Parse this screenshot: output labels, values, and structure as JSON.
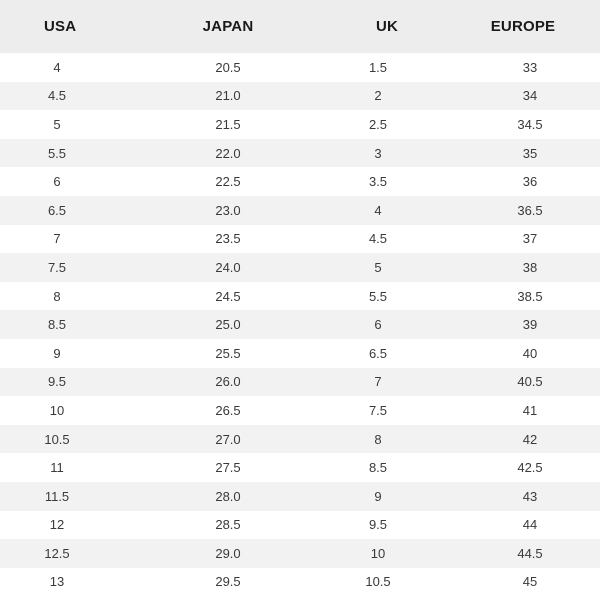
{
  "table": {
    "headers": [
      "USA",
      "JAPAN",
      "UK",
      "EUROPE"
    ],
    "rows": [
      [
        "4",
        "20.5",
        "1.5",
        "33"
      ],
      [
        "4.5",
        "21.0",
        "2",
        "34"
      ],
      [
        "5",
        "21.5",
        "2.5",
        "34.5"
      ],
      [
        "5.5",
        "22.0",
        "3",
        "35"
      ],
      [
        "6",
        "22.5",
        "3.5",
        "36"
      ],
      [
        "6.5",
        "23.0",
        "4",
        "36.5"
      ],
      [
        "7",
        "23.5",
        "4.5",
        "37"
      ],
      [
        "7.5",
        "24.0",
        "5",
        "38"
      ],
      [
        "8",
        "24.5",
        "5.5",
        "38.5"
      ],
      [
        "8.5",
        "25.0",
        "6",
        "39"
      ],
      [
        "9",
        "25.5",
        "6.5",
        "40"
      ],
      [
        "9.5",
        "26.0",
        "7",
        "40.5"
      ],
      [
        "10",
        "26.5",
        "7.5",
        "41"
      ],
      [
        "10.5",
        "27.0",
        "8",
        "42"
      ],
      [
        "11",
        "27.5",
        "8.5",
        "42.5"
      ],
      [
        "11.5",
        "28.0",
        "9",
        "43"
      ],
      [
        "12",
        "28.5",
        "9.5",
        "44"
      ],
      [
        "12.5",
        "29.0",
        "10",
        "44.5"
      ],
      [
        "13",
        "29.5",
        "10.5",
        "45"
      ]
    ]
  }
}
